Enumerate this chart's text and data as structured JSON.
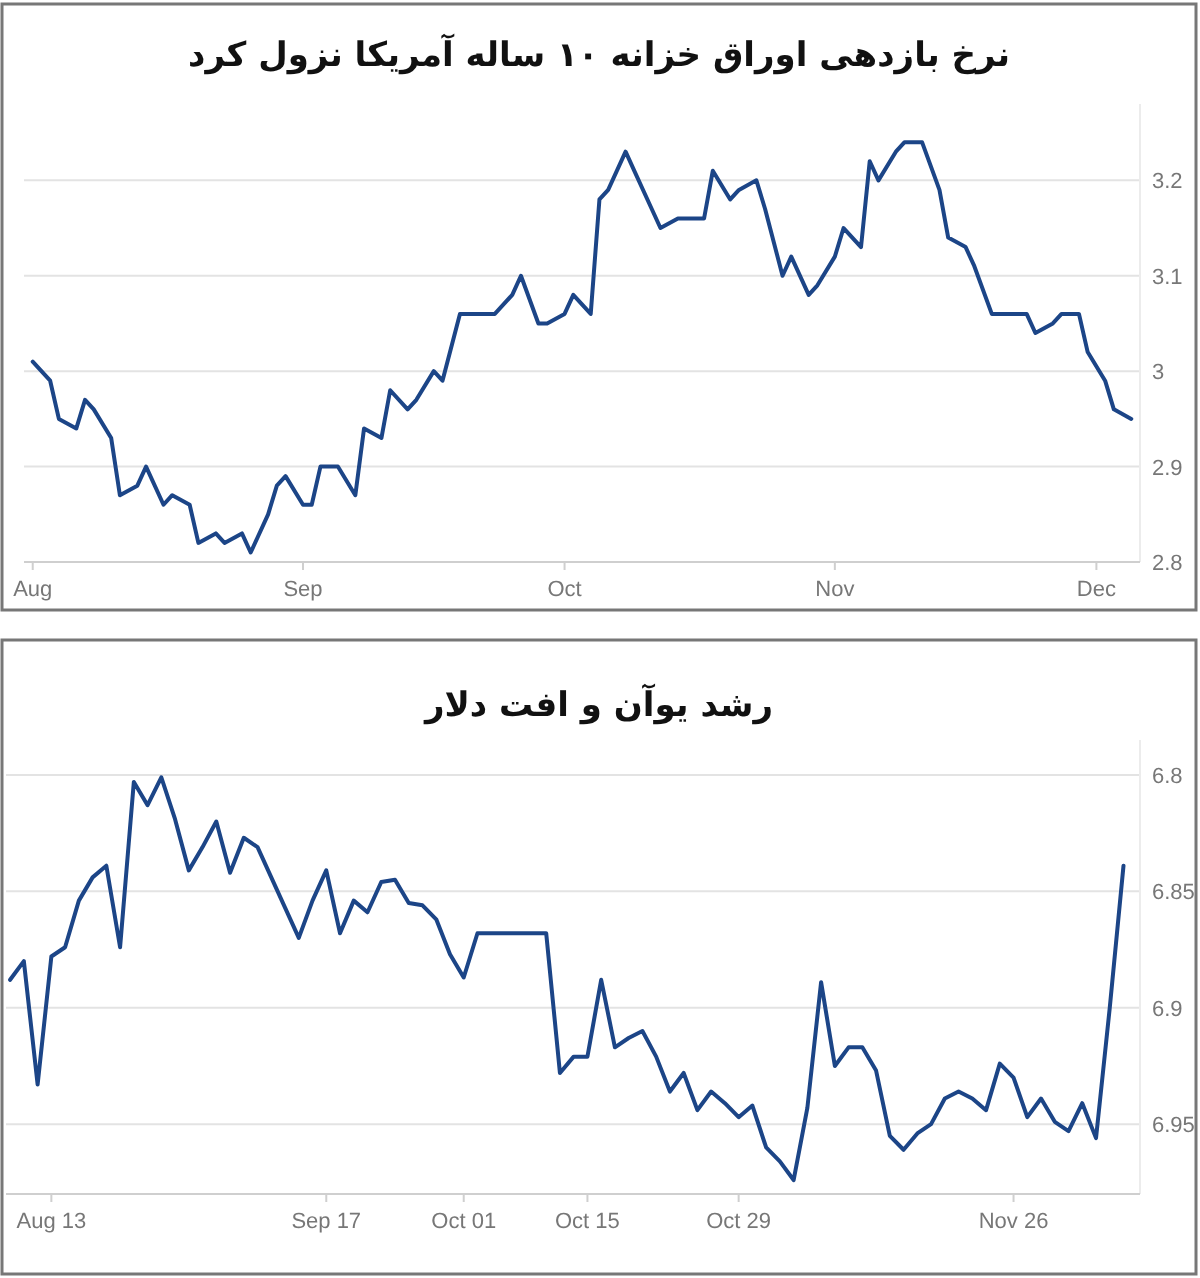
{
  "chart_data": [
    {
      "type": "line",
      "title": "نرخ بازدهی اوراق خزانه ۱۰ ساله آمریکا نزول کرد",
      "x": [
        "--08-01",
        "--08-03",
        "--08-04",
        "--08-06",
        "--08-07",
        "--08-08",
        "--08-10",
        "--08-11",
        "--08-13",
        "--08-14",
        "--08-16",
        "--08-17",
        "--08-19",
        "--08-20",
        "--08-22",
        "--08-23",
        "--08-25",
        "--08-26",
        "--08-28",
        "--08-29",
        "--08-30",
        "--09-01",
        "--09-02",
        "--09-03",
        "--09-05",
        "--09-07",
        "--09-08",
        "--09-10",
        "--09-11",
        "--09-13",
        "--09-14",
        "--09-16",
        "--09-17",
        "--09-19",
        "--09-20",
        "--09-22",
        "--09-23",
        "--09-25",
        "--09-26",
        "--09-28",
        "--09-29",
        "--10-01",
        "--10-02",
        "--10-04",
        "--10-05",
        "--10-06",
        "--10-08",
        "--10-09",
        "--10-11",
        "--10-12",
        "--10-14",
        "--10-15",
        "--10-17",
        "--10-18",
        "--10-20",
        "--10-21",
        "--10-23",
        "--10-24",
        "--10-26",
        "--10-27",
        "--10-29",
        "--10-30",
        "--11-01",
        "--11-02",
        "--11-04",
        "--11-05",
        "--11-06",
        "--11-08",
        "--11-09",
        "--11-11",
        "--11-13",
        "--11-14",
        "--11-16",
        "--11-17",
        "--11-19",
        "--11-20",
        "--11-22",
        "--11-23",
        "--11-24",
        "--11-26",
        "--11-27",
        "--11-29",
        "--11-30",
        "--12-02",
        "--12-03",
        "--12-05"
      ],
      "series": [
        {
          "color": "#1c4587",
          "values": [
            3.01,
            2.99,
            2.95,
            2.94,
            2.97,
            2.96,
            2.93,
            2.87,
            2.88,
            2.9,
            2.86,
            2.87,
            2.86,
            2.82,
            2.83,
            2.82,
            2.83,
            2.81,
            2.85,
            2.88,
            2.89,
            2.86,
            2.86,
            2.9,
            2.9,
            2.87,
            2.94,
            2.93,
            2.98,
            2.96,
            2.97,
            3.0,
            2.99,
            3.06,
            3.06,
            3.06,
            3.06,
            3.08,
            3.1,
            3.05,
            3.05,
            3.06,
            3.08,
            3.06,
            3.18,
            3.19,
            3.23,
            3.21,
            3.17,
            3.15,
            3.16,
            3.16,
            3.16,
            3.21,
            3.18,
            3.19,
            3.2,
            3.17,
            3.1,
            3.12,
            3.08,
            3.09,
            3.12,
            3.15,
            3.13,
            3.22,
            3.2,
            3.23,
            3.24,
            3.24,
            3.19,
            3.14,
            3.13,
            3.11,
            3.06,
            3.06,
            3.06,
            3.06,
            3.04,
            3.05,
            3.06,
            3.06,
            3.02,
            2.99,
            2.96,
            2.95
          ]
        }
      ],
      "xlim": [
        "--07-31",
        "--12-06"
      ],
      "xticks": [
        {
          "value": "--08-01",
          "label": "Aug"
        },
        {
          "value": "--09-01",
          "label": "Sep"
        },
        {
          "value": "--10-01",
          "label": "Oct"
        },
        {
          "value": "--11-01",
          "label": "Nov"
        },
        {
          "value": "--12-01",
          "label": "Dec"
        }
      ],
      "ylim": [
        2.8,
        3.28
      ],
      "yticks": [
        2.8,
        2.9,
        3,
        3.1,
        3.2
      ],
      "grid": "y"
    },
    {
      "type": "line",
      "title": "رشد یوآن و افت دلار",
      "categories": [
        null,
        null,
        null,
        "Aug 13",
        null,
        null,
        null,
        null,
        null,
        null,
        null,
        null,
        null,
        null,
        null,
        null,
        null,
        null,
        null,
        null,
        null,
        null,
        null,
        "Sep 17",
        null,
        null,
        null,
        null,
        null,
        null,
        null,
        null,
        null,
        "Oct 01",
        null,
        null,
        null,
        null,
        null,
        null,
        null,
        null,
        "Oct 15",
        null,
        null,
        null,
        null,
        null,
        null,
        null,
        null,
        null,
        null,
        "Oct 29",
        null,
        null,
        null,
        null,
        null,
        null,
        null,
        null,
        null,
        null,
        null,
        null,
        null,
        null,
        null,
        null,
        null,
        null,
        null,
        "Nov 26",
        null,
        null,
        null,
        null,
        null,
        null,
        null,
        null
      ],
      "series": [
        {
          "color": "#1c4587",
          "values": [
            6.888,
            6.88,
            6.933,
            6.878,
            6.874,
            6.854,
            6.844,
            6.839,
            6.874,
            6.803,
            6.813,
            6.801,
            6.819,
            6.841,
            6.831,
            6.82,
            6.842,
            6.827,
            6.831,
            6.844,
            6.857,
            6.87,
            6.854,
            6.841,
            6.868,
            6.854,
            6.859,
            6.846,
            6.845,
            6.855,
            6.856,
            6.862,
            6.877,
            6.887,
            6.868,
            6.868,
            6.868,
            6.868,
            6.868,
            6.868,
            6.928,
            6.921,
            6.921,
            6.888,
            6.917,
            6.913,
            6.91,
            6.921,
            6.936,
            6.928,
            6.944,
            6.936,
            6.941,
            6.947,
            6.942,
            6.96,
            6.966,
            6.974,
            6.943,
            6.889,
            6.925,
            6.917,
            6.917,
            6.927,
            6.955,
            6.961,
            6.954,
            6.95,
            6.939,
            6.936,
            6.939,
            6.944,
            6.924,
            6.93,
            6.947,
            6.939,
            6.949,
            6.953,
            6.941,
            6.956,
            6.9,
            6.839
          ]
        }
      ],
      "ylim": [
        6.98,
        6.785
      ],
      "yticks": [
        6.8,
        6.85,
        6.9,
        6.95
      ],
      "grid": "y"
    }
  ]
}
